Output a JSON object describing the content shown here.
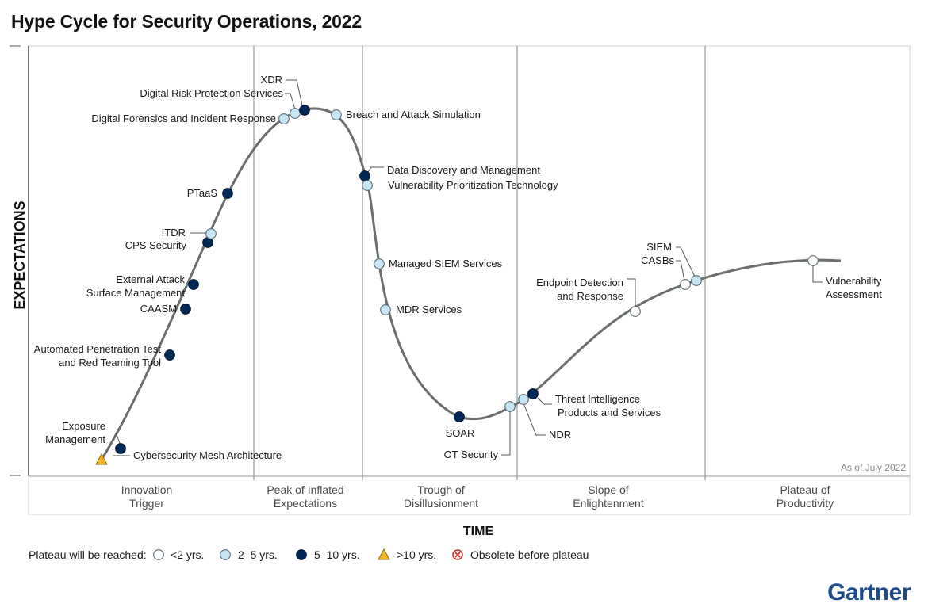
{
  "title": "Hype Cycle for Security Operations, 2022",
  "colors": {
    "lt2": "#ffffff",
    "y2to5": "#c7e6f5",
    "y5to10": "#002856",
    "gt10": "#f3b61f",
    "obsolete": "#d62c2c",
    "curve": "#6b6f6b",
    "gartner_blue": "#1e4a8a"
  },
  "chart_data": {
    "type": "scatter",
    "title": "Hype Cycle for Security Operations, 2022",
    "xlabel": "TIME",
    "ylabel": "EXPECTATIONS",
    "note": "As of July 2022",
    "phases": [
      [
        "Innovation",
        "Trigger"
      ],
      [
        "Peak of Inflated",
        "Expectations"
      ],
      [
        "Trough of",
        "Disillusionment"
      ],
      [
        "Slope of",
        "Enlightenment"
      ],
      [
        "Plateau of",
        "Productivity"
      ]
    ],
    "legend": {
      "label": "Plateau will be reached:",
      "items": [
        {
          "cat": "lt2",
          "label": "<2 yrs."
        },
        {
          "cat": "y2to5",
          "label": "2–5 yrs."
        },
        {
          "cat": "y5to10",
          "label": "5–10 yrs."
        },
        {
          "cat": "gt10",
          "label": ">10 yrs."
        },
        {
          "cat": "obsolete",
          "label": "Obsolete before plateau"
        }
      ]
    },
    "points": [
      {
        "name": "Cybersecurity Mesh Architecture",
        "cat": "gt10"
      },
      {
        "name": "Exposure Management",
        "cat": "y5to10"
      },
      {
        "name": "Automated Penetration Test and Red Teaming Tool",
        "cat": "y5to10"
      },
      {
        "name": "CAASM",
        "cat": "y5to10"
      },
      {
        "name": "External Attack Surface Management",
        "cat": "y5to10"
      },
      {
        "name": "CPS Security",
        "cat": "y5to10"
      },
      {
        "name": "ITDR",
        "cat": "y2to5"
      },
      {
        "name": "PTaaS",
        "cat": "y5to10"
      },
      {
        "name": "Digital Forensics and Incident Response",
        "cat": "y2to5"
      },
      {
        "name": "Digital Risk Protection Services",
        "cat": "y2to5"
      },
      {
        "name": "XDR",
        "cat": "y5to10"
      },
      {
        "name": "Breach and Attack Simulation",
        "cat": "y2to5"
      },
      {
        "name": "Data Discovery and Management",
        "cat": "y5to10"
      },
      {
        "name": "Vulnerability Prioritization Technology",
        "cat": "y2to5"
      },
      {
        "name": "Managed SIEM Services",
        "cat": "y2to5"
      },
      {
        "name": "MDR Services",
        "cat": "y2to5"
      },
      {
        "name": "SOAR",
        "cat": "y5to10"
      },
      {
        "name": "OT Security",
        "cat": "y2to5"
      },
      {
        "name": "NDR",
        "cat": "y2to5"
      },
      {
        "name": "Threat Intelligence Products and Services",
        "cat": "y5to10"
      },
      {
        "name": "Endpoint Detection and Response",
        "cat": "lt2"
      },
      {
        "name": "SIEM",
        "cat": "lt2"
      },
      {
        "name": "CASBs",
        "cat": "y2to5"
      },
      {
        "name": "Vulnerability Assessment",
        "cat": "lt2"
      }
    ]
  },
  "brand": "Gartner"
}
